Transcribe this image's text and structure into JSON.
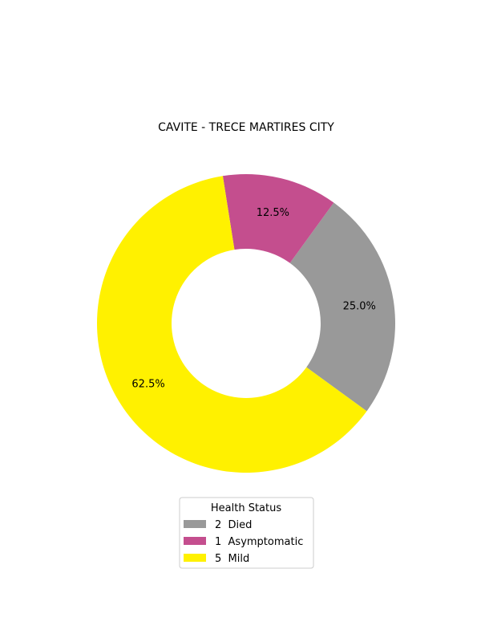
{
  "chart_data": {
    "type": "pie",
    "title": "CAVITE - TRECE MARTIRES CITY",
    "donut": true,
    "legend_title": "Health Status",
    "legend_position": "bottom-center",
    "slices": [
      {
        "label": "Died",
        "count": 2,
        "legend_label": "2  Died",
        "value": 25.0,
        "pct_label": "25.0%",
        "color": "#999999"
      },
      {
        "label": "Asymptomatic",
        "count": 1,
        "legend_label": "1  Asymptomatic",
        "value": 12.5,
        "pct_label": "12.5%",
        "color": "#c44e8e"
      },
      {
        "label": "Mild",
        "count": 5,
        "legend_label": "5  Mild",
        "value": 62.5,
        "pct_label": "62.5%",
        "color": "#fff100"
      }
    ]
  }
}
